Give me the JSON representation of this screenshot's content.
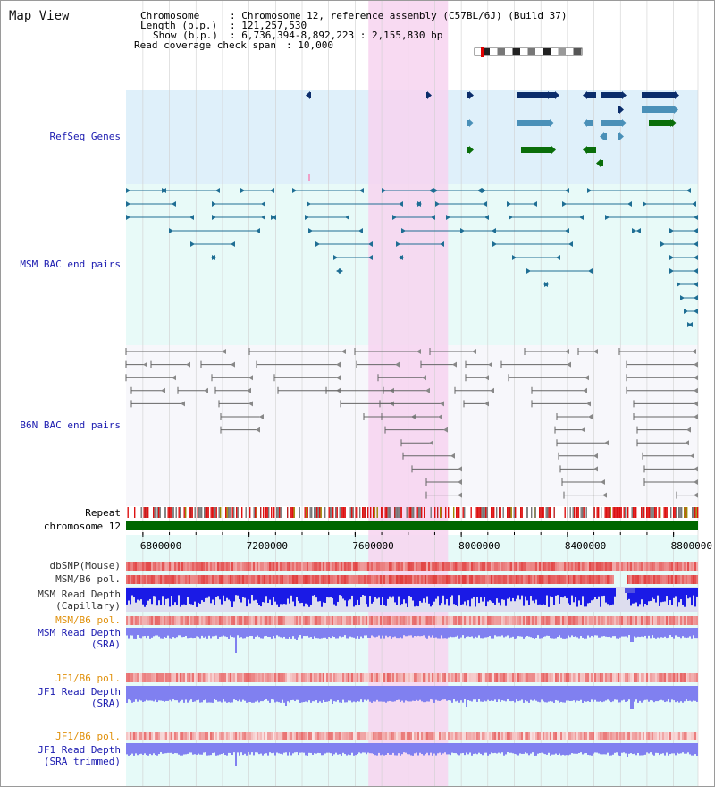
{
  "title": "Map View",
  "info": {
    "chromosome_label": "Chromosome",
    "chromosome_value": ": Chromosome 12, reference assembly (C57BL/6J) (Build 37)",
    "length_label": "Length (b.p.)",
    "length_value": ": 121,257,530",
    "show_label": "Show (b.p.)",
    "show_value": ": 6,736,394-8,892,223 : 2,155,830 bp",
    "read_label": "Read coverage check span",
    "read_value": ": 10,000"
  },
  "tracks": {
    "refseq": "RefSeq Genes",
    "msm_bac": "MSM BAC end pairs",
    "b6n_bac": "B6N BAC end pairs",
    "repeat": "Repeat",
    "chromosome": "chromosome 12",
    "dbsnp": "dbSNP(Mouse)",
    "msm_b6_pol_1": "MSM/B6 pol.",
    "msm_read_depth_cap_1": "MSM Read Depth",
    "msm_read_depth_cap_2": "(Capillary)",
    "msm_b6_pol_2": "MSM/B6 pol.",
    "msm_read_depth_sra_1": "MSM Read Depth",
    "msm_read_depth_sra_2": "(SRA)",
    "jf1_b6_pol_1": "JF1/B6 pol.",
    "jf1_read_depth_sra_1": "JF1 Read Depth",
    "jf1_read_depth_sra_2": "(SRA)",
    "jf1_b6_pol_2": "JF1/B6 pol.",
    "jf1_read_depth_trim_1": "JF1 Read Depth",
    "jf1_read_depth_trim_2": "(SRA trimmed)"
  },
  "axis": {
    "ticks": [
      "6800000",
      "7200000",
      "7600000",
      "8000000",
      "8400000",
      "8800000"
    ],
    "tick_values": [
      6800000,
      7200000,
      7600000,
      8000000,
      8400000,
      8800000
    ],
    "start": 6736394,
    "end": 8892223
  },
  "highlight_range": [
    7650000,
    7950000
  ],
  "colors": {
    "refseq_bg": "#dff0fa",
    "bac_bg": "#e8faf8",
    "b6n_bg": "#f7f7fb",
    "highlight": "#f7d4f0",
    "chromosome_bar": "#006600",
    "msm_depth": "#1a1ae6",
    "sra_depth": "#8080f0",
    "pol": "#f07070",
    "gene_navy": "#0b2d6b",
    "gene_teal": "#4a90b8",
    "gene_green": "#0a6e0a",
    "bac_line": "#1f6e94",
    "b6n_line": "#666666"
  }
}
